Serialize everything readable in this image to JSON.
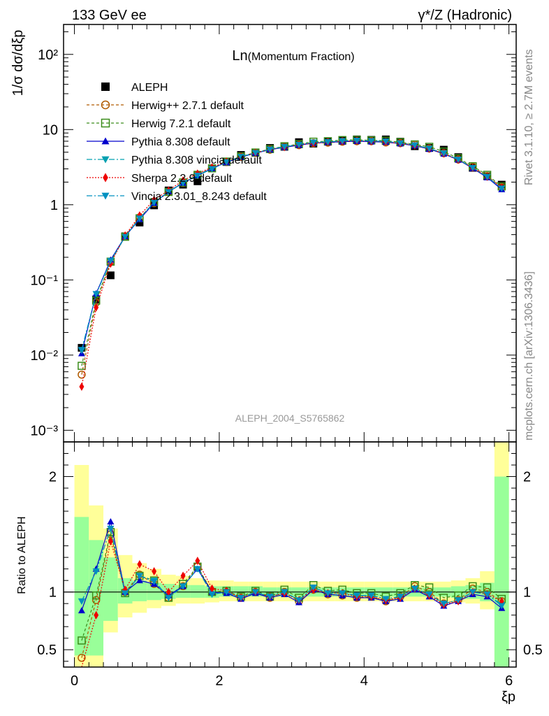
{
  "header": {
    "left": "133 GeV ee",
    "right": "γ*/Z (Hadronic)"
  },
  "side_labels": {
    "rivet": "Rivet 3.1.10, ≥ 2.7M events",
    "mcplots": "mcplots.cern.ch [arXiv:1306.3436]"
  },
  "colors": {
    "data": "#000000",
    "herwigpp": "#b05a00",
    "herwig7": "#3a8c1a",
    "pythia": "#0000cc",
    "pythia_vincia": "#00a0b0",
    "sherpa": "#ee0000",
    "vincia": "#0090c0",
    "band_inner": "#99ff99",
    "band_outer": "#ffff99"
  },
  "chart_data": [
    {
      "type": "scatter",
      "title": "Ln(Momentum Fraction)",
      "title_main": "Ln",
      "title_sub": "(Momentum Fraction)",
      "analysis_id": "ALEPH_2004_S5765862",
      "ylabel": "1/σ dσ/dξp",
      "xlabel": "ξp",
      "yscale": "log",
      "xlim": [
        -0.15,
        6.1
      ],
      "ylim": [
        0.0007,
        250
      ],
      "y_ticks": [
        "10⁻³",
        "10⁻²",
        "10⁻¹",
        "1",
        "10",
        "10²"
      ],
      "legend_placement": "top-left",
      "x": [
        0.1,
        0.3,
        0.5,
        0.7,
        0.9,
        1.1,
        1.3,
        1.5,
        1.7,
        1.9,
        2.1,
        2.3,
        2.5,
        2.7,
        2.9,
        3.1,
        3.3,
        3.5,
        3.7,
        3.9,
        4.1,
        4.3,
        4.5,
        4.7,
        4.9,
        5.1,
        5.3,
        5.5,
        5.7,
        5.9
      ],
      "series": [
        {
          "name": "ALEPH",
          "key": "data",
          "marker": "square-filled",
          "values": [
            0.0125,
            0.055,
            0.115,
            0.38,
            0.58,
            0.98,
            1.55,
            1.85,
            2.05,
            3.05,
            3.7,
            4.6,
            4.9,
            5.7,
            5.9,
            6.8,
            6.5,
            6.9,
            7.1,
            7.4,
            7.3,
            7.4,
            6.9,
            6.0,
            5.7,
            5.4,
            4.3,
            3.1,
            2.4,
            1.85
          ]
        },
        {
          "name": "Herwig++ 2.7.1 default",
          "key": "herwigpp",
          "marker": "circle-open",
          "dash": "4,3",
          "values": [
            0.0055,
            0.05,
            0.175,
            0.38,
            0.68,
            1.05,
            1.48,
            1.95,
            2.5,
            3.05,
            3.7,
            4.35,
            4.9,
            5.4,
            5.95,
            6.2,
            6.6,
            6.7,
            6.9,
            7.0,
            7.0,
            6.75,
            6.6,
            6.3,
            5.6,
            4.85,
            4.0,
            3.2,
            2.4,
            1.7
          ]
        },
        {
          "name": "Herwig 7.2.1 default",
          "key": "herwig7",
          "marker": "square-open",
          "dash": "4,3",
          "values": [
            0.0072,
            0.053,
            0.175,
            0.375,
            0.66,
            1.08,
            1.48,
            1.98,
            2.5,
            3.05,
            3.75,
            4.4,
            4.95,
            5.5,
            6.0,
            6.4,
            6.9,
            7.0,
            7.25,
            7.3,
            7.2,
            7.1,
            6.8,
            6.35,
            5.9,
            5.1,
            4.15,
            3.25,
            2.5,
            1.75
          ]
        },
        {
          "name": "Pythia 8.308 default",
          "key": "pythia",
          "marker": "triangle-up",
          "dash": "",
          "values": [
            0.0105,
            0.066,
            0.185,
            0.38,
            0.64,
            1.05,
            1.5,
            1.95,
            2.45,
            3.05,
            3.65,
            4.3,
            4.85,
            5.4,
            5.8,
            6.2,
            6.6,
            6.75,
            6.9,
            7.0,
            6.9,
            6.8,
            6.5,
            6.1,
            5.5,
            4.75,
            3.95,
            3.05,
            2.3,
            1.6
          ]
        },
        {
          "name": "Pythia 8.308 vincia default",
          "key": "pythia_vincia",
          "marker": "triangle-down",
          "dash": "8,3,2,3",
          "values": [
            0.0115,
            0.065,
            0.178,
            0.375,
            0.66,
            1.08,
            1.48,
            1.95,
            2.45,
            3.0,
            3.7,
            4.35,
            4.9,
            5.45,
            5.9,
            6.3,
            6.75,
            6.85,
            7.05,
            7.15,
            7.05,
            6.95,
            6.6,
            6.2,
            5.6,
            4.85,
            4.0,
            3.1,
            2.35,
            1.65
          ]
        },
        {
          "name": "Sherpa 2.2.9 default",
          "key": "sherpa",
          "marker": "diamond-filled",
          "dash": "2,2",
          "values": [
            0.0038,
            0.043,
            0.165,
            0.39,
            0.72,
            1.16,
            1.55,
            2.1,
            2.6,
            3.15,
            3.75,
            4.35,
            4.9,
            5.45,
            5.85,
            6.3,
            6.6,
            6.8,
            7.0,
            7.1,
            7.0,
            6.85,
            6.55,
            6.15,
            5.55,
            4.8,
            3.95,
            3.1,
            2.35,
            1.7
          ]
        },
        {
          "name": "Vincia 2.3.01_8.243 default",
          "key": "vincia",
          "marker": "triangle-down",
          "dash": "8,3,2,3",
          "values": [
            0.0118,
            0.065,
            0.18,
            0.375,
            0.66,
            1.07,
            1.48,
            1.95,
            2.45,
            3.0,
            3.7,
            4.35,
            4.9,
            5.45,
            5.9,
            6.3,
            6.75,
            6.85,
            7.05,
            7.15,
            7.05,
            6.95,
            6.6,
            6.2,
            5.6,
            4.85,
            4.0,
            3.1,
            2.35,
            1.65
          ]
        }
      ]
    },
    {
      "type": "line",
      "ylabel": "Ratio to ALEPH",
      "xlabel": "ξp",
      "xlim": [
        -0.15,
        6.1
      ],
      "ylim": [
        0.35,
        2.3
      ],
      "x_ticks": [
        "0",
        "2",
        "4",
        "6"
      ],
      "y_ticks": [
        "0.5",
        "1",
        "2"
      ],
      "x": [
        0.1,
        0.3,
        0.5,
        0.7,
        0.9,
        1.1,
        1.3,
        1.5,
        1.7,
        1.9,
        2.1,
        2.3,
        2.5,
        2.7,
        2.9,
        3.1,
        3.3,
        3.5,
        3.7,
        3.9,
        4.1,
        4.3,
        4.5,
        4.7,
        4.9,
        5.1,
        5.3,
        5.5,
        5.7,
        5.9
      ],
      "band_inner": [
        [
          0.45,
          1.65
        ],
        [
          0.45,
          1.45
        ],
        [
          0.75,
          1.3
        ],
        [
          0.9,
          1.12
        ],
        [
          0.92,
          1.1
        ],
        [
          0.93,
          1.08
        ],
        [
          0.94,
          1.07
        ],
        [
          0.95,
          1.06
        ],
        [
          0.95,
          1.06
        ],
        [
          0.95,
          1.05
        ],
        [
          0.96,
          1.05
        ],
        [
          0.96,
          1.05
        ],
        [
          0.96,
          1.05
        ],
        [
          0.96,
          1.04
        ],
        [
          0.96,
          1.04
        ],
        [
          0.96,
          1.04
        ],
        [
          0.96,
          1.04
        ],
        [
          0.96,
          1.04
        ],
        [
          0.96,
          1.04
        ],
        [
          0.96,
          1.04
        ],
        [
          0.96,
          1.04
        ],
        [
          0.96,
          1.04
        ],
        [
          0.96,
          1.04
        ],
        [
          0.96,
          1.04
        ],
        [
          0.96,
          1.04
        ],
        [
          0.96,
          1.04
        ],
        [
          0.95,
          1.05
        ],
        [
          0.94,
          1.06
        ],
        [
          0.92,
          1.08
        ],
        [
          0.35,
          2.0
        ]
      ],
      "band_outer": [
        [
          0.35,
          2.1
        ],
        [
          0.35,
          1.75
        ],
        [
          0.65,
          1.55
        ],
        [
          0.78,
          1.32
        ],
        [
          0.82,
          1.25
        ],
        [
          0.86,
          1.2
        ],
        [
          0.88,
          1.15
        ],
        [
          0.9,
          1.14
        ],
        [
          0.9,
          1.12
        ],
        [
          0.91,
          1.1
        ],
        [
          0.92,
          1.1
        ],
        [
          0.92,
          1.09
        ],
        [
          0.92,
          1.09
        ],
        [
          0.92,
          1.09
        ],
        [
          0.92,
          1.09
        ],
        [
          0.92,
          1.09
        ],
        [
          0.92,
          1.09
        ],
        [
          0.92,
          1.09
        ],
        [
          0.92,
          1.09
        ],
        [
          0.92,
          1.09
        ],
        [
          0.92,
          1.09
        ],
        [
          0.92,
          1.09
        ],
        [
          0.92,
          1.09
        ],
        [
          0.92,
          1.09
        ],
        [
          0.92,
          1.09
        ],
        [
          0.92,
          1.09
        ],
        [
          0.91,
          1.1
        ],
        [
          0.9,
          1.12
        ],
        [
          0.85,
          1.18
        ],
        [
          0.35,
          2.3
        ]
      ],
      "series": [
        {
          "name": "Herwig++ 2.7.1 default",
          "key": "herwigpp",
          "marker": "circle-open",
          "dash": "4,3",
          "values": [
            0.43,
            0.93,
            1.5,
            1.0,
            1.15,
            1.07,
            0.95,
            1.05,
            1.22,
            1.0,
            1.0,
            0.95,
            1.0,
            0.95,
            1.0,
            0.92,
            1.02,
            0.98,
            0.97,
            0.95,
            0.96,
            0.92,
            0.96,
            1.05,
            1.0,
            0.9,
            0.93,
            1.03,
            1.0,
            0.92
          ]
        },
        {
          "name": "Herwig 7.2.1 default",
          "key": "herwig7",
          "marker": "square-open",
          "dash": "4,3",
          "values": [
            0.58,
            0.97,
            1.52,
            0.99,
            1.14,
            1.1,
            0.95,
            1.07,
            1.22,
            1.0,
            1.01,
            0.96,
            1.01,
            0.96,
            1.02,
            0.95,
            1.06,
            1.01,
            1.02,
            0.99,
            0.99,
            0.96,
            0.99,
            1.06,
            1.04,
            0.95,
            0.97,
            1.05,
            1.04,
            0.94
          ]
        },
        {
          "name": "Pythia 8.308 default",
          "key": "pythia",
          "marker": "triangle-up",
          "dash": "",
          "values": [
            0.84,
            1.2,
            1.61,
            1.0,
            1.1,
            1.07,
            0.97,
            1.05,
            1.2,
            1.0,
            0.99,
            0.94,
            0.99,
            0.95,
            0.98,
            0.91,
            1.02,
            0.98,
            0.97,
            0.95,
            0.95,
            0.92,
            0.94,
            1.02,
            0.96,
            0.88,
            0.92,
            0.98,
            0.96,
            0.86
          ]
        },
        {
          "name": "Pythia 8.308 vincia default",
          "key": "pythia_vincia",
          "marker": "triangle-down",
          "dash": "8,3,2,3",
          "values": [
            0.92,
            1.18,
            1.55,
            0.99,
            1.14,
            1.1,
            0.95,
            1.05,
            1.2,
            0.98,
            1.0,
            0.95,
            1.0,
            0.96,
            1.0,
            0.93,
            1.04,
            0.99,
            0.99,
            0.97,
            0.97,
            0.94,
            0.96,
            1.03,
            0.98,
            0.9,
            0.93,
            1.0,
            0.98,
            0.89
          ]
        },
        {
          "name": "Sherpa 2.2.9 default",
          "key": "sherpa",
          "marker": "diamond-filled",
          "dash": "2,2",
          "values": [
            0.3,
            0.8,
            1.44,
            1.02,
            1.24,
            1.18,
            1.0,
            1.14,
            1.27,
            1.03,
            1.01,
            0.95,
            1.0,
            0.96,
            0.99,
            0.93,
            1.02,
            0.99,
            0.99,
            0.96,
            0.96,
            0.93,
            0.95,
            1.03,
            0.97,
            0.89,
            0.92,
            1.0,
            0.98,
            0.92
          ]
        },
        {
          "name": "Vincia 2.3.01_8.243 default",
          "key": "vincia",
          "marker": "triangle-down",
          "dash": "8,3,2,3",
          "values": [
            0.92,
            1.18,
            1.55,
            0.99,
            1.14,
            1.09,
            0.95,
            1.05,
            1.2,
            0.98,
            1.0,
            0.95,
            1.0,
            0.96,
            1.0,
            0.93,
            1.04,
            0.99,
            0.99,
            0.97,
            0.97,
            0.94,
            0.96,
            1.03,
            0.98,
            0.9,
            0.93,
            1.0,
            0.98,
            0.88
          ]
        }
      ]
    }
  ]
}
